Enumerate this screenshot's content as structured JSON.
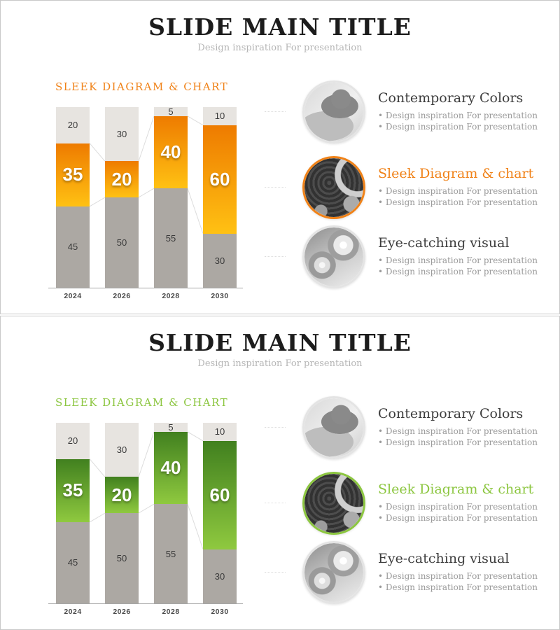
{
  "slides": [
    {
      "theme": "orange",
      "accent": "#F08218",
      "title": "SLIDE MAIN TITLE",
      "subtitle": "Design inspiration For presentation",
      "section_heading": "SLEEK DIAGRAM & CHART",
      "items": [
        {
          "title": "Contemporary Colors",
          "photo": "baby-hand-photo",
          "bullets": [
            "Design inspiration For presentation",
            "Design inspiration For presentation"
          ]
        },
        {
          "title": "Sleek Diagram & chart",
          "photo": "tangled-material-photo",
          "accent_title": true,
          "bullets": [
            "Design inspiration For presentation",
            "Design inspiration For presentation"
          ]
        },
        {
          "title": "Eye-catching visual",
          "photo": "glass-spheres-photo",
          "bullets": [
            "Design inspiration For presentation",
            "Design inspiration For presentation"
          ]
        }
      ]
    },
    {
      "theme": "green",
      "accent": "#8CC640",
      "title": "SLIDE MAIN TITLE",
      "subtitle": "Design inspiration For presentation",
      "section_heading": "SLEEK DIAGRAM & CHART",
      "items": [
        {
          "title": "Contemporary Colors",
          "photo": "baby-hand-photo",
          "bullets": [
            "Design inspiration For presentation",
            "Design inspiration For presentation"
          ]
        },
        {
          "title": "Sleek Diagram & chart",
          "photo": "tangled-material-photo",
          "accent_title": true,
          "bullets": [
            "Design inspiration For presentation",
            "Design inspiration For presentation"
          ]
        },
        {
          "title": "Eye-catching visual",
          "photo": "glass-spheres-photo",
          "bullets": [
            "Design inspiration For presentation",
            "Design inspiration For presentation"
          ]
        }
      ]
    }
  ],
  "chart_data": [
    {
      "type": "bar",
      "stacked": true,
      "title": "SLEEK DIAGRAM & CHART",
      "categories": [
        "2024",
        "2026",
        "2028",
        "2030"
      ],
      "series": [
        {
          "name": "top",
          "values": [
            20,
            30,
            5,
            10
          ],
          "color": "#E7E4E0",
          "label_color": "#3a3a3a"
        },
        {
          "name": "middle",
          "values": [
            35,
            20,
            40,
            60
          ],
          "color_top": "#EE7B00",
          "color_bottom": "#FFC113",
          "label_color": "#ffffff"
        },
        {
          "name": "bottom",
          "values": [
            45,
            50,
            55,
            30
          ],
          "color": "#ACA8A3",
          "label_color": "#3a3a3a"
        }
      ],
      "ylim": [
        0,
        100
      ],
      "connector_color": "#dcdcdc",
      "legend": "none",
      "grid": "off"
    },
    {
      "type": "bar",
      "stacked": true,
      "title": "SLEEK DIAGRAM & CHART",
      "categories": [
        "2024",
        "2026",
        "2028",
        "2030"
      ],
      "series": [
        {
          "name": "top",
          "values": [
            20,
            30,
            5,
            10
          ],
          "color": "#E7E4E0",
          "label_color": "#3a3a3a"
        },
        {
          "name": "middle",
          "values": [
            35,
            20,
            40,
            60
          ],
          "color_top": "#41801F",
          "color_bottom": "#8FC93F",
          "label_color": "#ffffff"
        },
        {
          "name": "bottom",
          "values": [
            45,
            50,
            55,
            30
          ],
          "color": "#ACA8A3",
          "label_color": "#3a3a3a"
        }
      ],
      "ylim": [
        0,
        100
      ],
      "connector_color": "#dcdcdc",
      "legend": "none",
      "grid": "off"
    }
  ]
}
